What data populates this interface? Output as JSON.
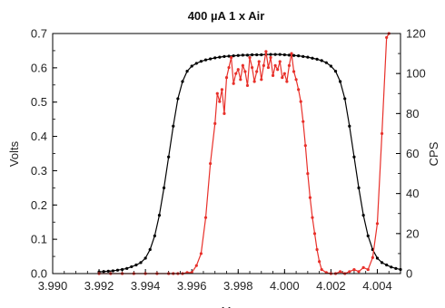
{
  "chart_data": {
    "type": "line",
    "title": "400 µA 1 x Air",
    "xlabel": "M",
    "ylabel_left": "Volts",
    "ylabel_right": "CPS",
    "xlim": [
      3.99,
      4.005
    ],
    "ylim_left": [
      0,
      0.7
    ],
    "ylim_right": [
      0,
      120
    ],
    "x_ticks": [
      "3.990",
      "3.992",
      "3.994",
      "3.996",
      "3.998",
      "4.000",
      "4.002",
      "4.004"
    ],
    "y_left_ticks": [
      "0.0",
      "0.1",
      "0.2",
      "0.3",
      "0.4",
      "0.5",
      "0.6",
      "0.7"
    ],
    "y_right_ticks": [
      "0",
      "20",
      "40",
      "60",
      "80",
      "100",
      "120"
    ],
    "grid": false,
    "series": [
      {
        "axis": "left",
        "color": "#000000",
        "marker": "dot",
        "points": [
          [
            3.992,
            0.005
          ],
          [
            3.9922,
            0.006
          ],
          [
            3.9924,
            0.007
          ],
          [
            3.9926,
            0.008
          ],
          [
            3.9928,
            0.01
          ],
          [
            3.993,
            0.012
          ],
          [
            3.9932,
            0.015
          ],
          [
            3.9934,
            0.02
          ],
          [
            3.9936,
            0.025
          ],
          [
            3.9938,
            0.032
          ],
          [
            3.994,
            0.045
          ],
          [
            3.9942,
            0.07
          ],
          [
            3.9944,
            0.11
          ],
          [
            3.9946,
            0.17
          ],
          [
            3.9948,
            0.25
          ],
          [
            3.995,
            0.34
          ],
          [
            3.9952,
            0.43
          ],
          [
            3.9954,
            0.51
          ],
          [
            3.9956,
            0.56
          ],
          [
            3.9958,
            0.59
          ],
          [
            3.996,
            0.605
          ],
          [
            3.9962,
            0.613
          ],
          [
            3.9964,
            0.619
          ],
          [
            3.9966,
            0.623
          ],
          [
            3.9968,
            0.626
          ],
          [
            3.997,
            0.629
          ],
          [
            3.9972,
            0.631
          ],
          [
            3.9974,
            0.633
          ],
          [
            3.9976,
            0.634
          ],
          [
            3.9978,
            0.635
          ],
          [
            3.998,
            0.636
          ],
          [
            3.9982,
            0.637
          ],
          [
            3.9984,
            0.637
          ],
          [
            3.9986,
            0.638
          ],
          [
            3.9988,
            0.638
          ],
          [
            3.999,
            0.638
          ],
          [
            3.9992,
            0.639
          ],
          [
            3.9994,
            0.639
          ],
          [
            3.9996,
            0.639
          ],
          [
            3.9998,
            0.639
          ],
          [
            4.0,
            0.638
          ],
          [
            4.0002,
            0.637
          ],
          [
            4.0004,
            0.636
          ],
          [
            4.0006,
            0.635
          ],
          [
            4.0008,
            0.633
          ],
          [
            4.001,
            0.631
          ],
          [
            4.0012,
            0.628
          ],
          [
            4.0014,
            0.625
          ],
          [
            4.0016,
            0.621
          ],
          [
            4.0018,
            0.615
          ],
          [
            4.002,
            0.605
          ],
          [
            4.0022,
            0.59
          ],
          [
            4.0024,
            0.56
          ],
          [
            4.0026,
            0.51
          ],
          [
            4.0028,
            0.43
          ],
          [
            4.003,
            0.34
          ],
          [
            4.0032,
            0.25
          ],
          [
            4.0034,
            0.17
          ],
          [
            4.0036,
            0.11
          ],
          [
            4.0038,
            0.07
          ],
          [
            4.004,
            0.045
          ],
          [
            4.0042,
            0.032
          ],
          [
            4.0044,
            0.025
          ],
          [
            4.0046,
            0.019
          ],
          [
            4.0048,
            0.015
          ],
          [
            4.005,
            0.012
          ]
        ]
      },
      {
        "axis": "right",
        "color": "#e8302a",
        "marker": "dot",
        "points": [
          [
            3.992,
            0
          ],
          [
            3.9925,
            0
          ],
          [
            3.993,
            0
          ],
          [
            3.9935,
            0
          ],
          [
            3.994,
            0
          ],
          [
            3.9945,
            0
          ],
          [
            3.995,
            0
          ],
          [
            3.9952,
            0
          ],
          [
            3.9954,
            0
          ],
          [
            3.9956,
            0
          ],
          [
            3.9958,
            0.5
          ],
          [
            3.996,
            0.5
          ],
          [
            3.9962,
            4
          ],
          [
            3.9964,
            10
          ],
          [
            3.9966,
            28
          ],
          [
            3.9968,
            55
          ],
          [
            3.997,
            75
          ],
          [
            3.9971,
            90
          ],
          [
            3.9972,
            86
          ],
          [
            3.9973,
            92
          ],
          [
            3.9974,
            80
          ],
          [
            3.9975,
            98
          ],
          [
            3.9976,
            103
          ],
          [
            3.9977,
            108
          ],
          [
            3.9978,
            95
          ],
          [
            3.9979,
            100
          ],
          [
            3.998,
            102
          ],
          [
            3.9981,
            97
          ],
          [
            3.9982,
            104
          ],
          [
            3.9983,
            101
          ],
          [
            3.9984,
            94
          ],
          [
            3.9985,
            108
          ],
          [
            3.9986,
            103
          ],
          [
            3.9987,
            96
          ],
          [
            3.9988,
            101
          ],
          [
            3.9989,
            106
          ],
          [
            3.999,
            97
          ],
          [
            3.9991,
            104
          ],
          [
            3.9992,
            111
          ],
          [
            3.9993,
            103
          ],
          [
            3.9994,
            108
          ],
          [
            3.9995,
            99
          ],
          [
            3.9996,
            104
          ],
          [
            3.9997,
            102
          ],
          [
            3.9998,
            106
          ],
          [
            3.9999,
            98
          ],
          [
            4.0,
            100
          ],
          [
            4.0001,
            96
          ],
          [
            4.0002,
            104
          ],
          [
            4.0003,
            110
          ],
          [
            4.0004,
            101
          ],
          [
            4.0005,
            97
          ],
          [
            4.0006,
            92
          ],
          [
            4.0007,
            86
          ],
          [
            4.0008,
            76
          ],
          [
            4.0009,
            64
          ],
          [
            4.001,
            50
          ],
          [
            4.0011,
            38
          ],
          [
            4.0012,
            28
          ],
          [
            4.0013,
            20
          ],
          [
            4.0014,
            12
          ],
          [
            4.0015,
            6
          ],
          [
            4.0016,
            2
          ],
          [
            4.0018,
            0.5
          ],
          [
            4.002,
            0
          ],
          [
            4.0022,
            0
          ],
          [
            4.0024,
            1
          ],
          [
            4.0026,
            0
          ],
          [
            4.0028,
            1
          ],
          [
            4.003,
            2
          ],
          [
            4.0032,
            1
          ],
          [
            4.0034,
            3
          ],
          [
            4.0036,
            2
          ],
          [
            4.0038,
            8
          ],
          [
            4.004,
            25
          ],
          [
            4.0042,
            70
          ],
          [
            4.0044,
            118
          ],
          [
            4.0045,
            120
          ]
        ]
      }
    ]
  }
}
